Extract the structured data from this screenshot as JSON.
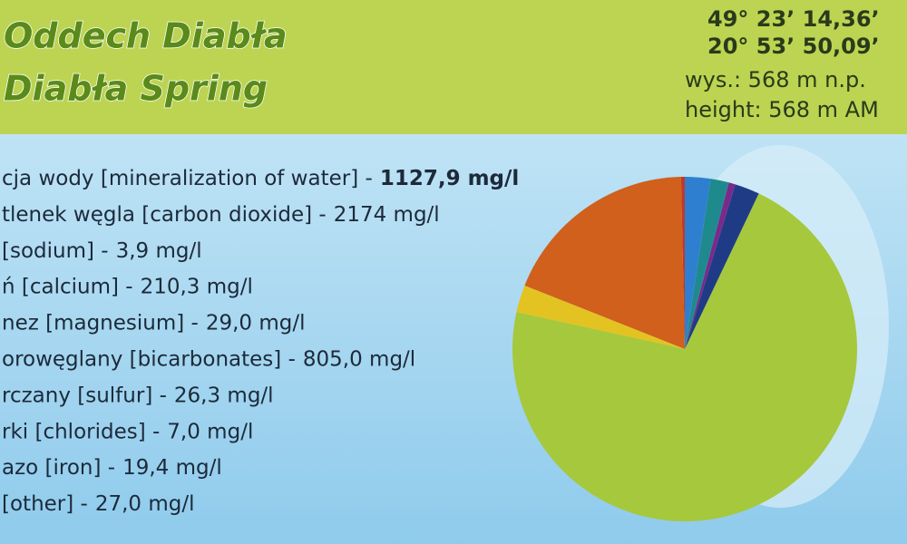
{
  "header": {
    "title_lines": [
      "Oddech Diabła",
      "Diabła Spring"
    ],
    "coords": [
      "49° 23’ 14,36’",
      "20° 53’ 50,09’",
      "wys.:  568 m n.p.",
      "height:  568 m AM"
    ]
  },
  "totals": [
    {
      "label": "cja wody [mineralization of water] -",
      "value": "1127,9 mg/l"
    },
    {
      "label": "tlenek węgla [carbon dioxide] -",
      "value": "2174 mg/l"
    }
  ],
  "chart_data": {
    "type": "pie",
    "categories": [
      "[sodium] -",
      "ń [calcium] -",
      "nez [magnesium] -",
      "orowęglany [bicarbonates] -",
      "rczany [sulfur] -",
      "rki [chlorides] -",
      "azo [iron] -",
      "[other] -"
    ],
    "values": [
      3.9,
      210.3,
      29.0,
      805.0,
      26.3,
      7.0,
      19.4,
      27.0
    ],
    "value_labels": [
      "3,9 mg/l",
      "210,3 mg/l",
      "29,0 mg/l",
      "805,0 mg/l",
      "26,3 mg/l",
      "7,0 mg/l",
      "19,4 mg/l",
      "27,0 mg/l"
    ],
    "colors": [
      "#c0392b",
      "#d0601c",
      "#e3c322",
      "#a6c83c",
      "#1f3b86",
      "#7b2a8c",
      "#1f8a8e",
      "#2f7fd0"
    ]
  }
}
